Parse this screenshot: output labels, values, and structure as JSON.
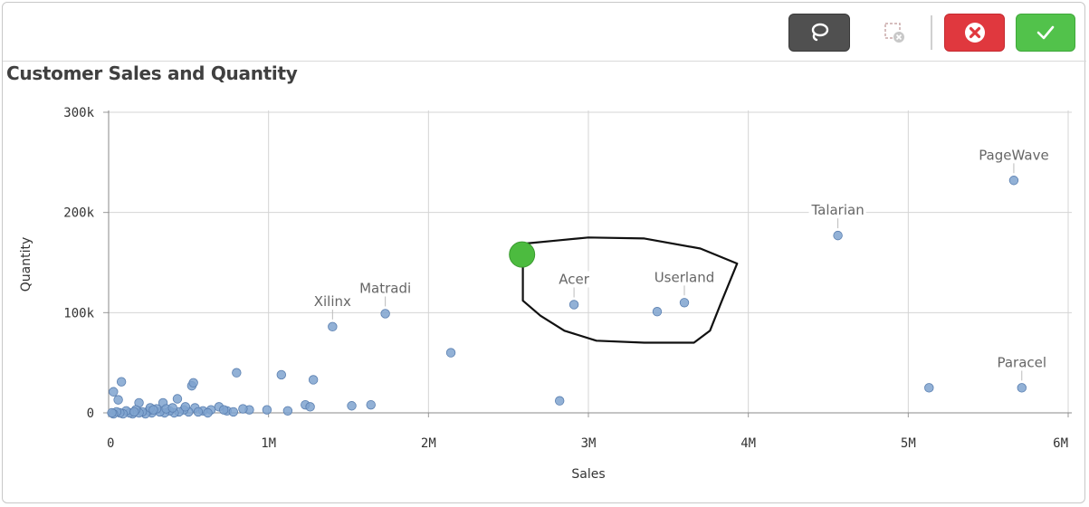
{
  "toolbar": {
    "lasso": "lasso-select",
    "clear": "clear-selection",
    "cancel": "cancel-selection",
    "confirm": "confirm-selection"
  },
  "colors": {
    "point": "#7fa3cf",
    "point_stroke": "#5a7fb0",
    "lasso_start": "#4cbb3f",
    "cancel": "#e0383e",
    "confirm": "#52c24b"
  },
  "chart_data": {
    "type": "scatter",
    "title": "Customer Sales and Quantity",
    "xlabel": "Sales",
    "ylabel": "Quantity",
    "xlim": [
      0,
      6000000
    ],
    "ylim": [
      -10000,
      300000
    ],
    "x_ticks": [
      {
        "value": 0,
        "label": "0"
      },
      {
        "value": 1000000,
        "label": "1M"
      },
      {
        "value": 2000000,
        "label": "2M"
      },
      {
        "value": 3000000,
        "label": "3M"
      },
      {
        "value": 4000000,
        "label": "4M"
      },
      {
        "value": 5000000,
        "label": "5M"
      },
      {
        "value": 6000000,
        "label": "6M"
      }
    ],
    "y_ticks": [
      {
        "value": 0,
        "label": "0"
      },
      {
        "value": 100000,
        "label": "100k"
      },
      {
        "value": 200000,
        "label": "200k"
      },
      {
        "value": 300000,
        "label": "300k"
      }
    ],
    "grid": true,
    "labeled_points": [
      {
        "name": "PageWave",
        "x": 5660000,
        "y": 232000
      },
      {
        "name": "Talarian",
        "x": 4560000,
        "y": 177000
      },
      {
        "name": "Userland",
        "x": 3600000,
        "y": 110000
      },
      {
        "name": "Acer",
        "x": 2910000,
        "y": 108000
      },
      {
        "name": "Matradi",
        "x": 1730000,
        "y": 99000
      },
      {
        "name": "Xilinx",
        "x": 1400000,
        "y": 86000
      },
      {
        "name": "Paracel",
        "x": 5710000,
        "y": 25000
      }
    ],
    "points": [
      [
        3430000,
        101000
      ],
      [
        2140000,
        60000
      ],
      [
        2820000,
        12000
      ],
      [
        5130000,
        25000
      ],
      [
        800000,
        40000
      ],
      [
        1080000,
        38000
      ],
      [
        1280000,
        33000
      ],
      [
        520000,
        27000
      ],
      [
        80000,
        31000
      ],
      [
        30000,
        21000
      ],
      [
        60000,
        13000
      ],
      [
        190000,
        10000
      ],
      [
        340000,
        10000
      ],
      [
        430000,
        14000
      ],
      [
        530000,
        30000
      ],
      [
        1230000,
        8000
      ],
      [
        1260000,
        6000
      ],
      [
        1520000,
        7000
      ],
      [
        1640000,
        8000
      ],
      [
        990000,
        3000
      ],
      [
        1120000,
        2000
      ],
      [
        880000,
        3000
      ],
      [
        840000,
        4000
      ],
      [
        740000,
        2000
      ],
      [
        690000,
        6000
      ],
      [
        640000,
        3000
      ],
      [
        590000,
        2000
      ],
      [
        540000,
        5000
      ],
      [
        500000,
        1000
      ],
      [
        470000,
        3000
      ],
      [
        440000,
        1000
      ],
      [
        410000,
        0
      ],
      [
        380000,
        2000
      ],
      [
        350000,
        0
      ],
      [
        320000,
        1000
      ],
      [
        300000,
        4000
      ],
      [
        270000,
        0
      ],
      [
        250000,
        2000
      ],
      [
        230000,
        -1000
      ],
      [
        210000,
        1000
      ],
      [
        190000,
        0
      ],
      [
        170000,
        3000
      ],
      [
        150000,
        -1000
      ],
      [
        130000,
        0
      ],
      [
        110000,
        2000
      ],
      [
        90000,
        -1000
      ],
      [
        70000,
        0
      ],
      [
        50000,
        1000
      ],
      [
        30000,
        -1000
      ],
      [
        20000,
        0
      ],
      [
        260000,
        5000
      ],
      [
        360000,
        4000
      ],
      [
        480000,
        6000
      ],
      [
        620000,
        0
      ],
      [
        560000,
        1000
      ],
      [
        720000,
        3000
      ],
      [
        780000,
        1000
      ],
      [
        400000,
        5000
      ],
      [
        280000,
        3000
      ],
      [
        160000,
        1000
      ]
    ],
    "lasso_path": [
      [
        2605000,
        169000
      ],
      [
        2800000,
        172000
      ],
      [
        3000000,
        175000
      ],
      [
        3350000,
        174000
      ],
      [
        3700000,
        164000
      ],
      [
        3930000,
        149000
      ],
      [
        3830000,
        110000
      ],
      [
        3760000,
        82000
      ],
      [
        3660000,
        70000
      ],
      [
        3350000,
        70000
      ],
      [
        3050000,
        72000
      ],
      [
        2850000,
        82000
      ],
      [
        2700000,
        97000
      ],
      [
        2590000,
        112000
      ],
      [
        2590000,
        140000
      ],
      [
        2590000,
        166000
      ]
    ],
    "lasso_start": [
      2585000,
      158000
    ]
  }
}
